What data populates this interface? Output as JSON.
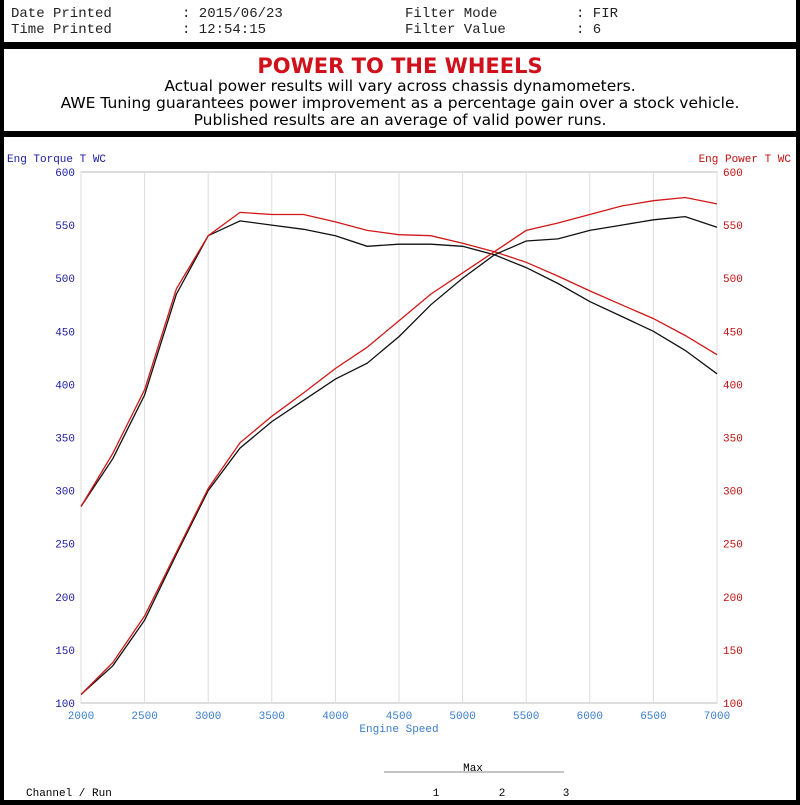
{
  "header": {
    "date_label": "Date Printed",
    "date_value": ": 2015/06/23",
    "time_label": "Time Printed",
    "time_value": ": 12:54:15",
    "filter_mode_label": "Filter Mode",
    "filter_mode_value": ": FIR",
    "filter_value_label": "Filter Value",
    "filter_value_value": ": 6"
  },
  "banner": {
    "title": "POWER TO THE WHEELS",
    "lines": [
      "Actual power results will vary across chassis dynamometers.",
      "AWE Tuning guarantees power improvement as a percentage gain over a stock vehicle.",
      "Published results are an average of valid power runs."
    ]
  },
  "table": {
    "max_label": "Max",
    "channel_label": "Channel / Run",
    "runs": [
      "1",
      "2",
      "3"
    ]
  },
  "chart_data": {
    "type": "line",
    "xlabel": "Engine Speed",
    "ylabel_left": "Eng Torque T WC",
    "ylabel_right": "Eng Power T WC",
    "xlim": [
      2000,
      7000
    ],
    "ylim": [
      100,
      600
    ],
    "grid": true,
    "xticks": [
      2000,
      2500,
      3000,
      3500,
      4000,
      4500,
      5000,
      5500,
      6000,
      6500,
      7000
    ],
    "yticks": [
      100,
      150,
      200,
      250,
      300,
      350,
      400,
      450,
      500,
      550,
      600
    ],
    "colors": {
      "left_axis": "#1a1aa0",
      "right_axis": "#c01010",
      "x_axis": "#3a7cc8"
    },
    "x": [
      2000,
      2250,
      2500,
      2750,
      3000,
      3250,
      3500,
      3750,
      4000,
      4250,
      4500,
      4750,
      5000,
      5250,
      5500,
      5750,
      6000,
      6250,
      6500,
      6750,
      7000
    ],
    "series": [
      {
        "color": "#111111",
        "values": [
          285,
          330,
          390,
          485,
          540,
          554,
          550,
          546,
          540,
          530,
          532,
          532,
          530,
          522,
          510,
          495,
          478,
          464,
          450,
          432,
          410
        ]
      },
      {
        "color": "#d01818",
        "values": [
          285,
          335,
          395,
          490,
          540,
          562,
          560,
          560,
          553,
          545,
          541,
          540,
          533,
          525,
          515,
          502,
          488,
          475,
          462,
          446,
          428
        ]
      },
      {
        "color": "#111111",
        "values": [
          108,
          135,
          178,
          240,
          300,
          340,
          365,
          385,
          405,
          420,
          445,
          475,
          500,
          522,
          535,
          537,
          545,
          550,
          555,
          558,
          548
        ]
      },
      {
        "color": "#d01818",
        "values": [
          108,
          138,
          182,
          242,
          302,
          345,
          370,
          392,
          415,
          435,
          460,
          485,
          505,
          525,
          545,
          552,
          560,
          568,
          573,
          576,
          570
        ]
      }
    ]
  }
}
